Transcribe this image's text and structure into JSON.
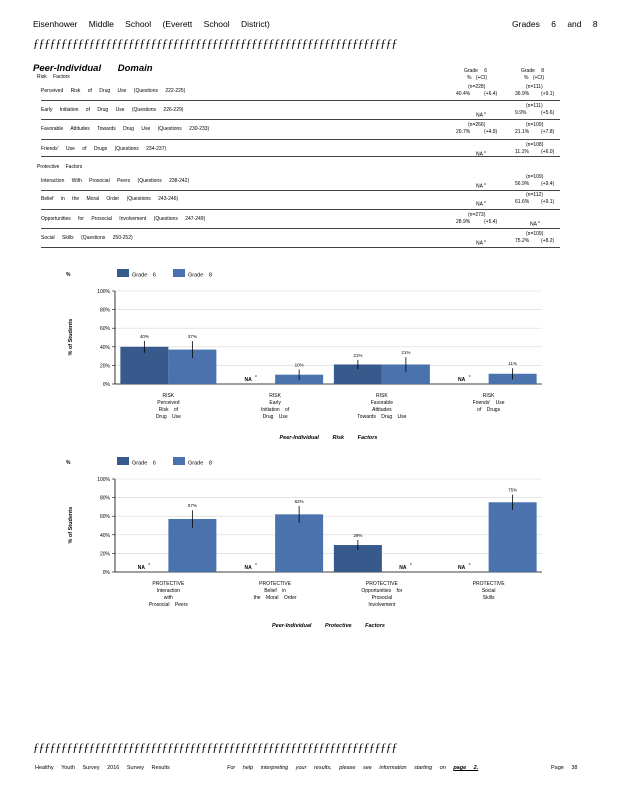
{
  "header": {
    "school": "Eisenhower Middle School (Everett School District)",
    "grades": "Grades 6 and 8",
    "divider": "ƒƒƒƒƒƒƒƒƒƒƒƒƒƒƒƒƒƒƒƒƒƒƒƒƒƒƒƒƒƒƒƒƒƒƒƒƒƒƒƒƒƒƒƒƒƒƒƒƒƒƒƒƒƒƒƒƒƒƒƒƒƒƒƒƒ"
  },
  "domain": {
    "title": "Peer-Individual Domain",
    "risk_heading": "Risk Factors",
    "protective_heading": "Protective Factors",
    "col_grade6": "Grade 6",
    "col_grade8": "Grade 8",
    "col_sub6": "% (+CI)",
    "col_sub8": "% (+CI)"
  },
  "table": {
    "risk_rows": [
      {
        "label": "Perceived Risk of Drug Use (Questions 222-225)",
        "n6": "(n=228)",
        "v6": "40.4%",
        "ci6": "(+6.4)",
        "n8": "(n=111)",
        "v8": "36.9%",
        "ci8": "(+9.1)"
      },
      {
        "label": "Early Initiation of Drug Use (Questions 226-229)",
        "n6": "",
        "v6": "NA",
        "sup6": "c",
        "ci6": "",
        "n8": "(n=111)",
        "v8": "9.9%",
        "ci8": "(+5.6)"
      },
      {
        "label": "Favorable Attitudes Towards Drug Use (Questions 230-233)",
        "n6": "(n=266)",
        "v6": "20.7%",
        "ci6": "(+4.9)",
        "n8": "(n=109)",
        "v8": "21.1%",
        "ci8": "(+7.8)"
      },
      {
        "label": "Friends' Use of Drugs (Questions 234-237)",
        "n6": "",
        "v6": "NA",
        "sup6": "c",
        "ci6": "",
        "n8": "(n=108)",
        "v8": "11.1%",
        "ci8": "(+6.0)"
      }
    ],
    "protective_rows": [
      {
        "label": "Interaction With Prosocial Peers (Questions 238-242)",
        "n6": "",
        "v6": "NA",
        "sup6": "c",
        "ci6": "",
        "n8": "(n=109)",
        "v8": "56.9%",
        "ci8": "(+9.4)"
      },
      {
        "label": "Belief in the Moral Order (Questions 243-246)",
        "n6": "",
        "v6": "NA",
        "sup6": "c",
        "ci6": "",
        "n8": "(n=112)",
        "v8": "61.6%",
        "ci8": "(+9.1)"
      },
      {
        "label": "Opportunities for Prosocial Involvement (Questions 247-249)",
        "n6": "(n=273)",
        "v6": "28.9%",
        "ci6": "(+5.4)",
        "n8": "",
        "v8": "NA",
        "sup8": "c",
        "ci8": ""
      },
      {
        "label": "Social Skills (Questions 250-252)",
        "n6": "",
        "v6": "NA",
        "sup6": "c",
        "ci6": "",
        "n8": "(n=109)",
        "v8": "75.2%",
        "ci8": "(+8.2)"
      }
    ]
  },
  "colors": {
    "grade6": "#37598b",
    "grade8": "#4a73ae"
  },
  "chart_data": [
    {
      "type": "bar",
      "title": "Peer-Individual Risk Factors",
      "ylabel": "% of Students",
      "ylim": [
        0,
        100
      ],
      "yticks": [
        "0%",
        "20%",
        "40%",
        "60%",
        "80%",
        "100%"
      ],
      "categories": [
        [
          "RISK",
          "Perceived",
          "Risk of",
          "Drug Use"
        ],
        [
          "RISK",
          "Early",
          "Initiation of",
          "Drug Use"
        ],
        [
          "RISK",
          "Favorable",
          "Attitudes",
          "Towards Drug Use"
        ],
        [
          "RISK",
          "Friends' Use",
          "of Drugs"
        ]
      ],
      "series": [
        {
          "name": "Grade 6",
          "values": [
            40,
            null,
            21,
            null
          ],
          "ci": [
            6.4,
            null,
            4.9,
            null
          ],
          "labels": [
            "40%",
            "NA",
            "21%",
            "NA"
          ]
        },
        {
          "name": "Grade 8",
          "values": [
            37,
            10,
            21,
            11
          ],
          "ci": [
            9.1,
            5.6,
            7.8,
            6.0
          ],
          "labels": [
            "37%",
            "10%",
            "21%",
            "11%"
          ]
        }
      ],
      "na_superscript": "c",
      "grid": true,
      "legend": "top-left"
    },
    {
      "type": "bar",
      "title": "Peer-Individual Protective Factors",
      "ylabel": "% of Students",
      "ylim": [
        0,
        100
      ],
      "yticks": [
        "0%",
        "20%",
        "40%",
        "60%",
        "80%",
        "100%"
      ],
      "categories": [
        [
          "PROTECTIVE",
          "Interaction",
          "with",
          "Prosocial Peers"
        ],
        [
          "PROTECTIVE",
          "Belief in",
          "the Moral Order"
        ],
        [
          "PROTECTIVE",
          "Opportunities for",
          "Prosocial",
          "Involvement"
        ],
        [
          "PROTECTIVE",
          "Social",
          "Skills"
        ]
      ],
      "series": [
        {
          "name": "Grade 6",
          "values": [
            null,
            null,
            29,
            null
          ],
          "ci": [
            null,
            null,
            5.4,
            null
          ],
          "labels": [
            "NA",
            "NA",
            "29%",
            "NA"
          ]
        },
        {
          "name": "Grade 8",
          "values": [
            57,
            62,
            null,
            75
          ],
          "ci": [
            9.4,
            9.1,
            null,
            8.2
          ],
          "labels": [
            "57%",
            "62%",
            "NA",
            "75%"
          ]
        }
      ],
      "na_superscript": "c",
      "grid": true,
      "legend": "top-left"
    }
  ],
  "footer": {
    "left": "Healthy Youth Survey 2016 Survey Results",
    "middle": "For help interpreting your results, please see information starting on",
    "link": "page 2.",
    "right": "Page 38"
  }
}
